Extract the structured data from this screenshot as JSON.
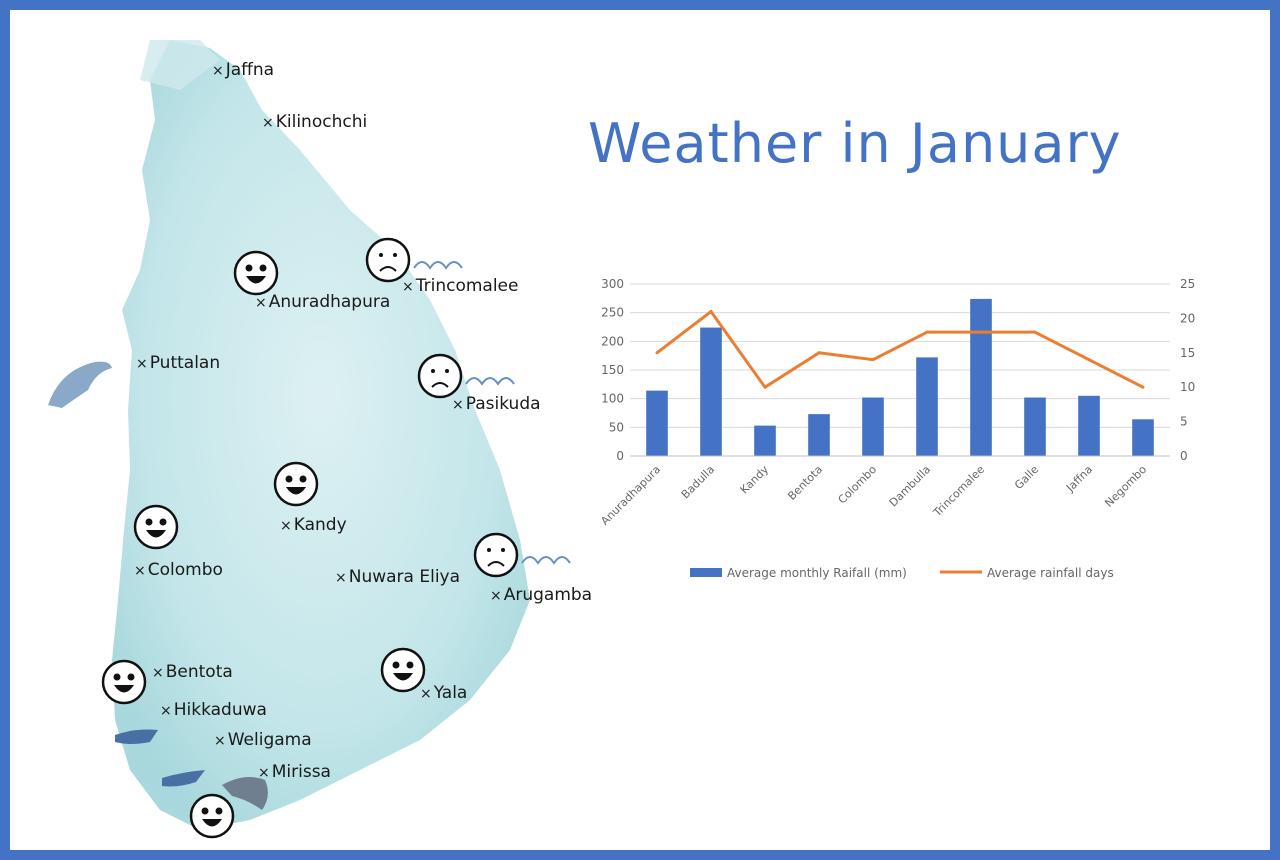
{
  "title": "Weather in January",
  "map": {
    "places": [
      {
        "name": "Jaffna",
        "mood": "none"
      },
      {
        "name": "Kilinochchi",
        "mood": "none"
      },
      {
        "name": "Trincomalee",
        "mood": "sad"
      },
      {
        "name": "Anuradhapura",
        "mood": "happy"
      },
      {
        "name": "Puttalan",
        "mood": "none"
      },
      {
        "name": "Pasikuda",
        "mood": "sad"
      },
      {
        "name": "Kandy",
        "mood": "happy"
      },
      {
        "name": "Colombo",
        "mood": "happy"
      },
      {
        "name": "Nuwara Eliya",
        "mood": "none"
      },
      {
        "name": "Arugamba",
        "mood": "sad"
      },
      {
        "name": "Bentota",
        "mood": "happy"
      },
      {
        "name": "Yala",
        "mood": "happy"
      },
      {
        "name": "Hikkaduwa",
        "mood": "none"
      },
      {
        "name": "Weligama",
        "mood": "none"
      },
      {
        "name": "Mirissa",
        "mood": "happy"
      }
    ],
    "icons": [
      "happy-face-icon",
      "sad-face-icon",
      "wave-icon",
      "dolphin-icon",
      "whale-icon",
      "surfer-icon"
    ],
    "colors": {
      "land": "#bfe3e6",
      "land_dark": "#8ccfd3"
    }
  },
  "chart_data": {
    "type": "bar",
    "categories": [
      "Anuradhapura",
      "Badulla",
      "Kandy",
      "Bentota",
      "Colombo",
      "Dambulla",
      "Trincomalee",
      "Galle",
      "Jaffna",
      "Negombo"
    ],
    "series": [
      {
        "name": "Average monthly Raifall (mm)",
        "type": "bar",
        "axis": "left",
        "color": "#4472c4",
        "values": [
          114,
          224,
          53,
          73,
          102,
          172,
          274,
          102,
          105,
          64
        ]
      },
      {
        "name": "Average rainfall days",
        "type": "line",
        "axis": "right",
        "color": "#ed7d31",
        "values": [
          15,
          21,
          10,
          15,
          14,
          18,
          18,
          18,
          14,
          10
        ]
      }
    ],
    "ylim_left": [
      0,
      300
    ],
    "yticks_left": [
      "0",
      "50",
      "100",
      "150",
      "200",
      "250",
      "300"
    ],
    "ylim_right": [
      0,
      25
    ],
    "yticks_right": [
      "0",
      "5",
      "10",
      "15",
      "20",
      "25"
    ],
    "grid": true,
    "legend": "bottom"
  }
}
